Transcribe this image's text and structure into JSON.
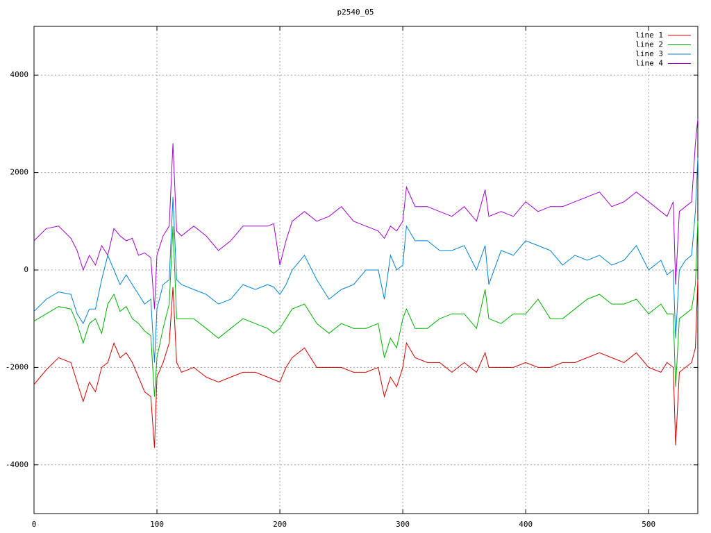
{
  "chart_data": {
    "type": "line",
    "title": "p2540_05",
    "x": [
      0,
      10,
      20,
      30,
      35,
      40,
      45,
      50,
      55,
      60,
      65,
      70,
      75,
      80,
      85,
      90,
      95,
      98,
      100,
      105,
      110,
      113,
      116,
      120,
      130,
      140,
      150,
      160,
      170,
      180,
      190,
      195,
      200,
      205,
      210,
      220,
      230,
      240,
      250,
      260,
      270,
      280,
      285,
      290,
      295,
      300,
      303,
      310,
      320,
      330,
      340,
      350,
      360,
      367,
      370,
      380,
      390,
      400,
      410,
      420,
      430,
      440,
      450,
      460,
      470,
      480,
      490,
      500,
      510,
      515,
      520,
      522,
      525,
      530,
      535,
      538,
      540
    ],
    "series": [
      {
        "name": "line 1",
        "color": "#d00000",
        "values": [
          -2350,
          -2050,
          -1800,
          -1900,
          -2300,
          -2700,
          -2300,
          -2500,
          -2000,
          -1900,
          -1500,
          -1800,
          -1700,
          -1900,
          -2200,
          -2500,
          -2600,
          -3650,
          -2200,
          -1900,
          -1500,
          -350,
          -1900,
          -2100,
          -2000,
          -2200,
          -2300,
          -2200,
          -2100,
          -2100,
          -2200,
          -2250,
          -2300,
          -2000,
          -1800,
          -1600,
          -2000,
          -2000,
          -2000,
          -2100,
          -2100,
          -2000,
          -2600,
          -2200,
          -2400,
          -2000,
          -1500,
          -1800,
          -1900,
          -1900,
          -2100,
          -1900,
          -2100,
          -1700,
          -2000,
          -2000,
          -2000,
          -1900,
          -2000,
          -2000,
          -1900,
          -1900,
          -1800,
          -1700,
          -1800,
          -1900,
          -1700,
          -2000,
          -2100,
          -1900,
          -2000,
          -3600,
          -2100,
          -2000,
          -1900,
          -1600,
          -200
        ]
      },
      {
        "name": "line 2",
        "color": "#00b000",
        "values": [
          -1050,
          -900,
          -750,
          -800,
          -1100,
          -1500,
          -1100,
          -1000,
          -1300,
          -700,
          -500,
          -850,
          -750,
          -1000,
          -1100,
          -1250,
          -1350,
          -2600,
          -1800,
          -1200,
          -700,
          900,
          -1000,
          -1000,
          -1000,
          -1200,
          -1400,
          -1200,
          -1000,
          -1100,
          -1200,
          -1300,
          -1200,
          -1000,
          -800,
          -700,
          -1100,
          -1300,
          -1100,
          -1200,
          -1200,
          -1100,
          -1800,
          -1400,
          -1600,
          -1000,
          -800,
          -1200,
          -1200,
          -1000,
          -900,
          -900,
          -1200,
          -400,
          -1000,
          -1100,
          -900,
          -900,
          -600,
          -1000,
          -1000,
          -800,
          -600,
          -500,
          -700,
          -700,
          -600,
          -900,
          -700,
          -900,
          -900,
          -2400,
          -1000,
          -900,
          -800,
          -300,
          1000
        ]
      },
      {
        "name": "line 3",
        "color": "#0080d0",
        "values": [
          -850,
          -600,
          -450,
          -500,
          -900,
          -1100,
          -800,
          -800,
          -200,
          300,
          0,
          -300,
          -100,
          -300,
          -500,
          -700,
          -600,
          -1900,
          -800,
          -300,
          -200,
          1500,
          -200,
          -300,
          -400,
          -500,
          -700,
          -600,
          -300,
          -400,
          -300,
          -350,
          -500,
          -300,
          0,
          300,
          -200,
          -600,
          -400,
          -300,
          0,
          0,
          -600,
          300,
          0,
          100,
          900,
          600,
          600,
          400,
          400,
          500,
          0,
          500,
          -300,
          400,
          300,
          600,
          500,
          400,
          100,
          300,
          200,
          300,
          100,
          200,
          500,
          0,
          200,
          -100,
          0,
          -1400,
          0,
          200,
          300,
          1200,
          2300
        ]
      },
      {
        "name": "line 4",
        "color": "#a000d0",
        "values": [
          600,
          850,
          900,
          650,
          400,
          0,
          300,
          100,
          500,
          300,
          850,
          700,
          600,
          650,
          300,
          350,
          250,
          -800,
          300,
          700,
          900,
          2600,
          800,
          700,
          900,
          700,
          400,
          600,
          900,
          900,
          900,
          950,
          100,
          600,
          1000,
          1200,
          1000,
          1100,
          1300,
          1000,
          900,
          800,
          650,
          900,
          800,
          1000,
          1700,
          1300,
          1300,
          1200,
          1100,
          1300,
          1000,
          1650,
          1100,
          1200,
          1100,
          1400,
          1200,
          1300,
          1300,
          1400,
          1500,
          1600,
          1300,
          1400,
          1600,
          1400,
          1200,
          1100,
          1400,
          -300,
          1200,
          1300,
          1400,
          2600,
          3100
        ]
      }
    ],
    "xlim": [
      0,
      540
    ],
    "ylim": [
      -5000,
      5000
    ],
    "xticks": [
      0,
      100,
      200,
      300,
      400,
      500
    ],
    "yticks": [
      -4000,
      -2000,
      0,
      2000,
      4000
    ],
    "grid": true,
    "legend": "top-right"
  }
}
